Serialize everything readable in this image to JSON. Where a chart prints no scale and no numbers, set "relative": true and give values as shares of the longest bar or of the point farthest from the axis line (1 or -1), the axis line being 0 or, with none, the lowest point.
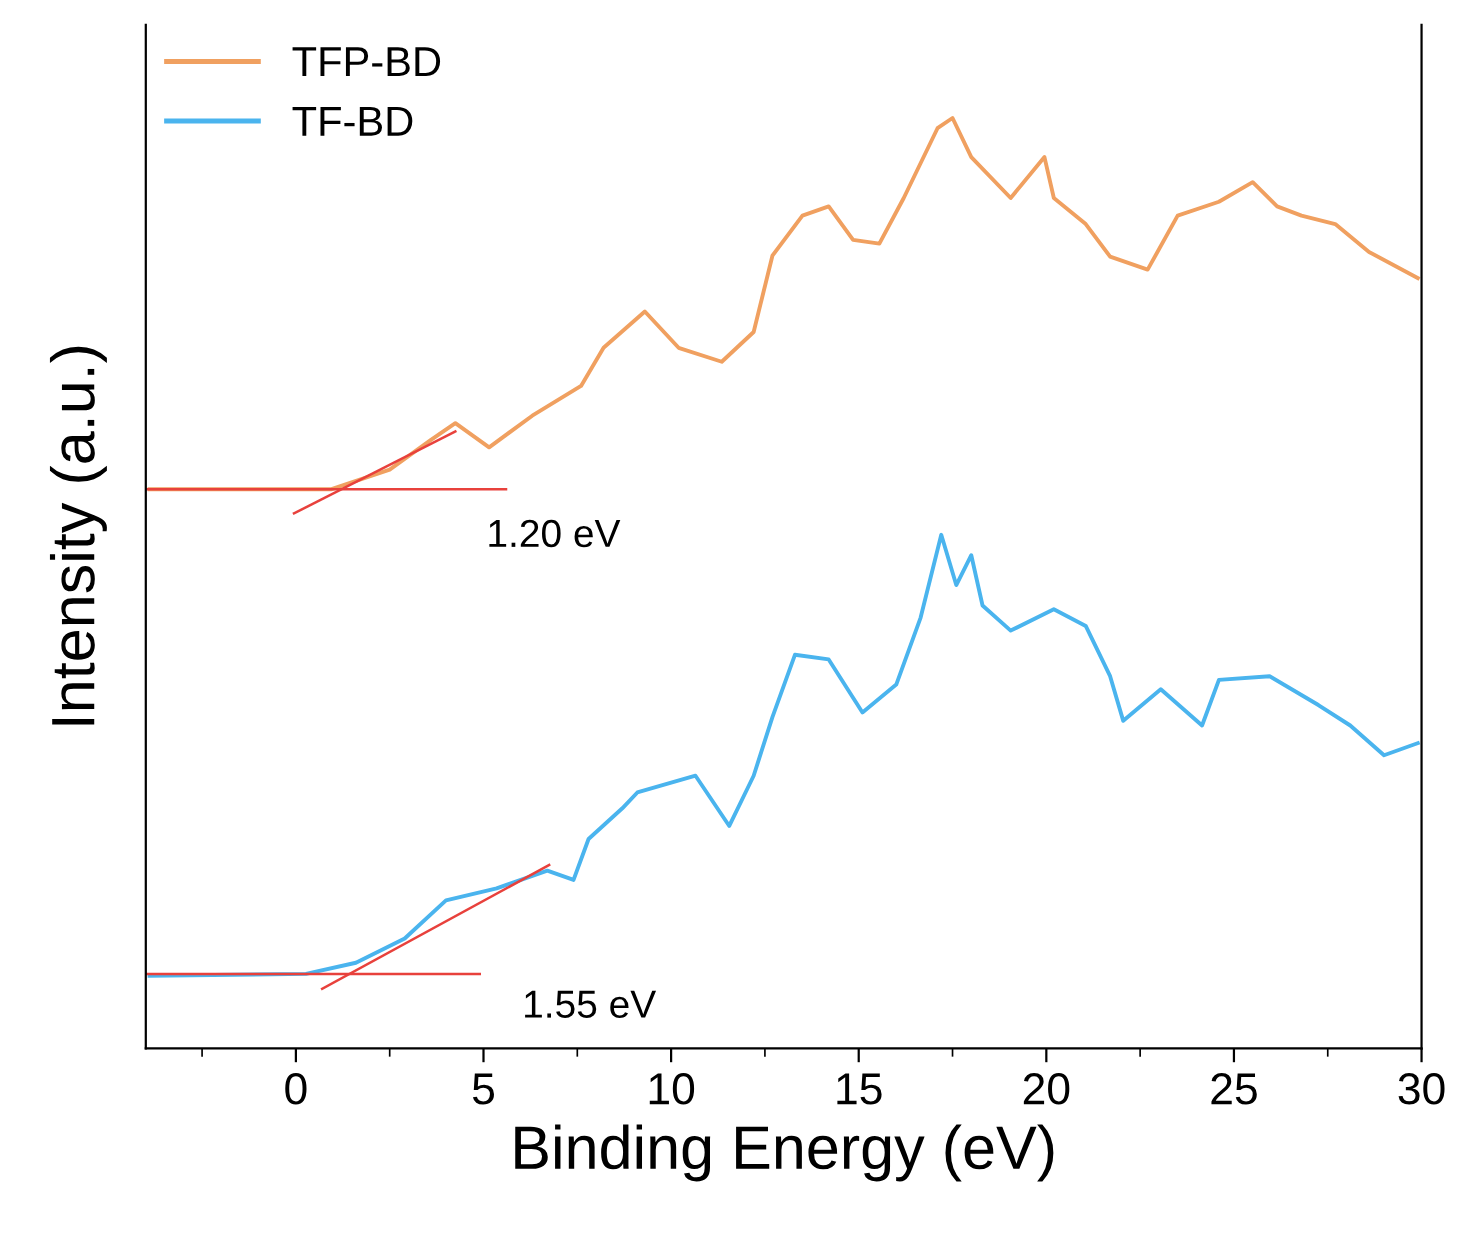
{
  "chart_data": {
    "type": "line",
    "relative": true,
    "xlabel": "Binding Energy (eV)",
    "ylabel": "Intensity (a.u.)",
    "xlim": [
      -4,
      30
    ],
    "xticks": [
      0,
      5,
      10,
      15,
      20,
      25,
      30
    ],
    "tick_labels": "x",
    "legend": "top left",
    "grid": false,
    "marker": "none",
    "line_style": "solid",
    "series": [
      {
        "name": "TFP-BD",
        "color": "#f0a060",
        "x": [
          -3.9,
          0.95,
          2.5,
          3.6,
          4.25,
          5.15,
          6.3,
          7.6,
          8.2,
          9.3,
          10.2,
          11.35,
          12.2,
          12.7,
          13.5,
          14.2,
          14.85,
          15.55,
          16.2,
          17.1,
          17.5,
          18.0,
          19.05,
          19.95,
          20.2,
          21.05,
          21.7,
          22.7,
          23.5,
          24.6,
          25.5,
          26.15,
          26.8,
          27.7,
          28.6,
          29.9
        ],
        "values": [
          0.601,
          0.601,
          0.622,
          0.654,
          0.672,
          0.646,
          0.68,
          0.712,
          0.753,
          0.792,
          0.753,
          0.738,
          0.77,
          0.852,
          0.895,
          0.905,
          0.869,
          0.865,
          0.914,
          0.989,
          1,
          0.958,
          0.914,
          0.958,
          0.914,
          0.886,
          0.851,
          0.837,
          0.895,
          0.91,
          0.931,
          0.905,
          0.895,
          0.886,
          0.856,
          0.828
        ]
      },
      {
        "name": "TF-BD",
        "color": "#4ab4ee",
        "x": [
          -3.9,
          0.27,
          1.6,
          2.9,
          4.0,
          5.35,
          6.7,
          7.4,
          7.8,
          8.7,
          9.1,
          10.65,
          11.55,
          12.2,
          12.7,
          13.3,
          14.2,
          15.1,
          16.0,
          16.65,
          17.2,
          17.6,
          18.0,
          18.3,
          19.05,
          20.2,
          21.05,
          21.7,
          22.05,
          23.05,
          24.15,
          24.6,
          25.95,
          27.25,
          28.1,
          29.0,
          29.9
        ],
        "values": [
          0.078,
          0.08,
          0.092,
          0.118,
          0.159,
          0.172,
          0.191,
          0.181,
          0.225,
          0.258,
          0.275,
          0.293,
          0.239,
          0.293,
          0.356,
          0.423,
          0.418,
          0.361,
          0.391,
          0.463,
          0.552,
          0.498,
          0.53,
          0.476,
          0.449,
          0.472,
          0.454,
          0.4,
          0.352,
          0.386,
          0.347,
          0.396,
          0.4,
          0.369,
          0.347,
          0.315,
          0.328
        ]
      },
      {
        "type": "line",
        "color": "#e8413c",
        "x": [
          -4,
          5.6
        ],
        "values": [
          0.601,
          0.601
        ]
      },
      {
        "type": "line",
        "color": "#e8413c",
        "x": [
          -0.05,
          4.25
        ],
        "values": [
          0.575,
          0.663
        ]
      },
      {
        "type": "line",
        "color": "#e8413c",
        "x": [
          -4,
          4.9
        ],
        "values": [
          0.08,
          0.08
        ]
      },
      {
        "type": "line",
        "color": "#e8413c",
        "x": [
          0.7,
          6.75
        ],
        "values": [
          0.064,
          0.197
        ]
      }
    ],
    "annotations": [
      "1.20 eV",
      "1.55 eV"
    ]
  }
}
